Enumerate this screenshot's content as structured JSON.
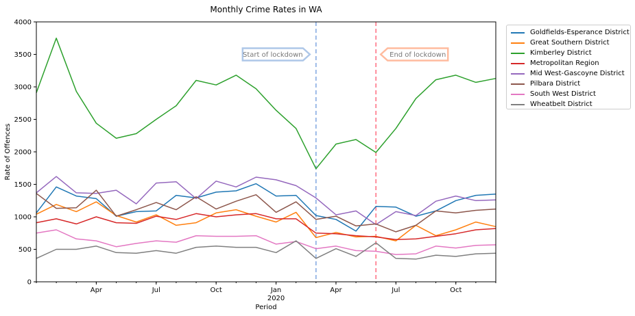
{
  "chart_data": {
    "type": "line",
    "title": "Monthly Crime Rates in WA",
    "xlabel": "Period",
    "ylabel": "Rate of Offences",
    "ylim": [
      0,
      4000
    ],
    "yticks": [
      0,
      500,
      1000,
      1500,
      2000,
      2500,
      3000,
      3500,
      4000
    ],
    "x": [
      "2019-01",
      "2019-02",
      "2019-03",
      "2019-04",
      "2019-05",
      "2019-06",
      "2019-07",
      "2019-08",
      "2019-09",
      "2019-10",
      "2019-11",
      "2019-12",
      "2020-01",
      "2020-02",
      "2020-03",
      "2020-04",
      "2020-05",
      "2020-06",
      "2020-07",
      "2020-08",
      "2020-09",
      "2020-10",
      "2020-11",
      "2020-12"
    ],
    "xticks": [
      {
        "x": "2019-04",
        "label": "Apr"
      },
      {
        "x": "2019-07",
        "label": "Jul"
      },
      {
        "x": "2019-10",
        "label": "Oct"
      },
      {
        "x": "2020-01",
        "label": "Jan",
        "sublabel": "2020"
      },
      {
        "x": "2020-04",
        "label": "Apr"
      },
      {
        "x": "2020-07",
        "label": "Jul"
      },
      {
        "x": "2020-10",
        "label": "Oct"
      }
    ],
    "grid": false,
    "legend_position": "outside-top-right",
    "series": [
      {
        "name": "Goldfields-Esperance District",
        "color": "#1f77b4",
        "values": [
          1060,
          1460,
          1320,
          1280,
          1010,
          1080,
          1090,
          1330,
          1290,
          1380,
          1400,
          1510,
          1320,
          1330,
          1020,
          960,
          780,
          1160,
          1150,
          1010,
          1090,
          1250,
          1330,
          1350
        ]
      },
      {
        "name": "Great Southern District",
        "color": "#ff7f0e",
        "values": [
          1040,
          1190,
          1080,
          1230,
          1020,
          920,
          1030,
          870,
          910,
          1060,
          1110,
          1010,
          920,
          1070,
          680,
          760,
          690,
          700,
          630,
          870,
          710,
          800,
          920,
          850
        ]
      },
      {
        "name": "Kimberley District",
        "color": "#2ca02c",
        "values": [
          2910,
          3750,
          2930,
          2440,
          2210,
          2280,
          2500,
          2710,
          3100,
          3030,
          3180,
          2970,
          2640,
          2360,
          1740,
          2120,
          2190,
          1990,
          2360,
          2820,
          3110,
          3180,
          3070,
          3130
        ]
      },
      {
        "name": "Metropolitan Region",
        "color": "#d62728",
        "values": [
          910,
          970,
          890,
          1000,
          910,
          900,
          1010,
          960,
          1050,
          1000,
          1030,
          1050,
          970,
          970,
          750,
          740,
          710,
          690,
          650,
          660,
          700,
          740,
          800,
          820
        ]
      },
      {
        "name": "Mid West-Gascoyne District",
        "color": "#9467bd",
        "values": [
          1370,
          1620,
          1370,
          1360,
          1410,
          1200,
          1520,
          1540,
          1280,
          1550,
          1460,
          1610,
          1570,
          1480,
          1290,
          1030,
          1090,
          880,
          1080,
          1020,
          1240,
          1320,
          1250,
          1260
        ]
      },
      {
        "name": "Pilbara District",
        "color": "#8c564b",
        "values": [
          1360,
          1130,
          1140,
          1410,
          1010,
          1110,
          1220,
          1110,
          1310,
          1120,
          1240,
          1340,
          1070,
          1230,
          960,
          1010,
          860,
          890,
          770,
          870,
          1090,
          1060,
          1100,
          1120
        ]
      },
      {
        "name": "South West District",
        "color": "#e377c2",
        "values": [
          750,
          800,
          660,
          630,
          540,
          590,
          630,
          610,
          710,
          700,
          700,
          710,
          580,
          620,
          510,
          550,
          480,
          470,
          420,
          430,
          550,
          520,
          560,
          570
        ]
      },
      {
        "name": "Wheatbelt District",
        "color": "#7f7f7f",
        "values": [
          360,
          500,
          500,
          550,
          450,
          440,
          480,
          440,
          530,
          550,
          530,
          530,
          450,
          630,
          360,
          510,
          390,
          600,
          360,
          350,
          410,
          390,
          430,
          440
        ]
      }
    ],
    "annotations": [
      {
        "text": "Start of lockdown",
        "x": "2020-03",
        "color": "#aec7e8",
        "line_color": "#7fa6e0",
        "arrow": "right"
      },
      {
        "text": "End of lockdown",
        "x": "2020-06",
        "color": "#ffbb9e",
        "line_color": "#ff6b7f",
        "arrow": "left"
      }
    ]
  }
}
